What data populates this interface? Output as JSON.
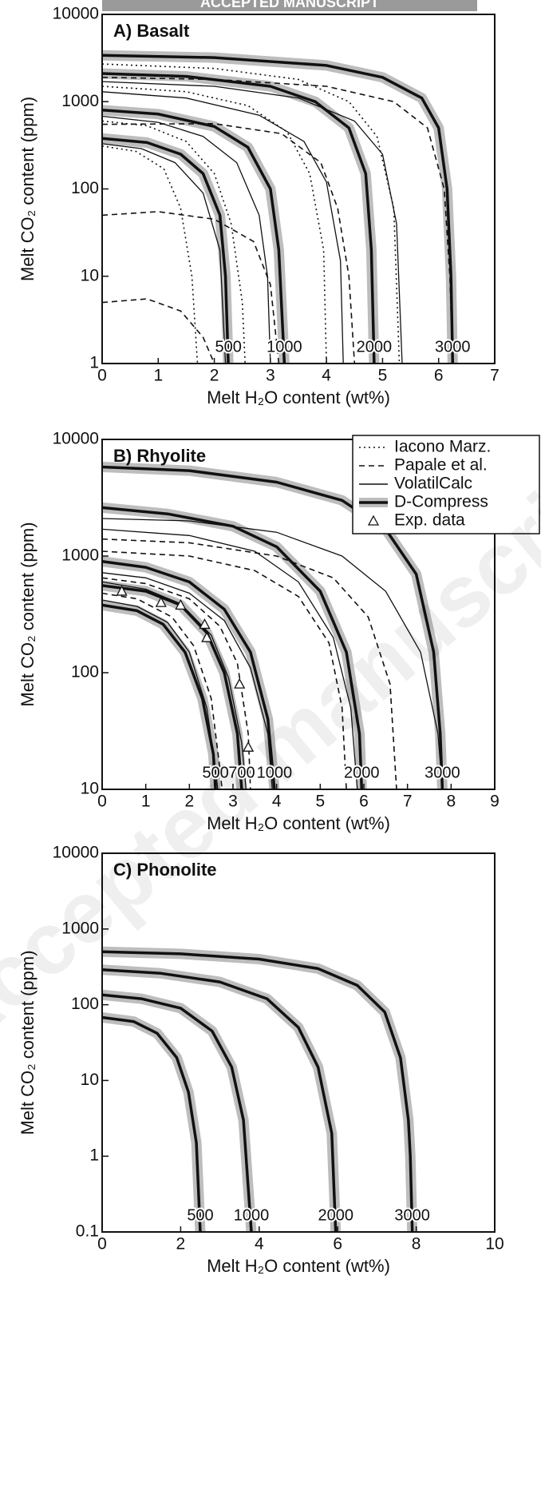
{
  "banner": "ACCEPTED MANUSCRIPT",
  "watermark": "Accepted manuscript",
  "chart_data": [
    {
      "type": "line",
      "title": "A) Basalt",
      "xlabel": "Melt H₂O content (wt%)",
      "ylabel": "Melt CO₂ content (ppm)",
      "xlim": [
        0,
        7
      ],
      "ylim": [
        1,
        10000
      ],
      "log_y": true,
      "xticks": [
        0,
        1,
        2,
        3,
        4,
        5,
        6,
        7
      ],
      "yticks": [
        1,
        10,
        100,
        1000,
        10000
      ],
      "series": [
        {
          "style": "dotted",
          "x": [
            0,
            2,
            3.5,
            4.4,
            4.9,
            5.2,
            5.3
          ],
          "values": [
            2700,
            2400,
            1800,
            1000,
            400,
            60,
            1
          ]
        },
        {
          "style": "dotted",
          "x": [
            0,
            1.5,
            2.6,
            3.3,
            3.7,
            3.95,
            4.0
          ],
          "values": [
            1500,
            1300,
            900,
            450,
            150,
            20,
            1
          ]
        },
        {
          "style": "dotted",
          "x": [
            0,
            0.8,
            1.5,
            2.0,
            2.3,
            2.5,
            2.55
          ],
          "values": [
            600,
            530,
            350,
            150,
            40,
            5,
            1
          ]
        },
        {
          "style": "dotted",
          "x": [
            0,
            0.6,
            1.1,
            1.4,
            1.6,
            1.7
          ],
          "values": [
            310,
            270,
            170,
            60,
            10,
            1
          ]
        },
        {
          "style": "dashed",
          "x": [
            0,
            2,
            4,
            5.2,
            5.8,
            6.1,
            6.2,
            6.25
          ],
          "values": [
            1900,
            1800,
            1500,
            1000,
            500,
            100,
            10,
            1
          ]
        },
        {
          "style": "dashed",
          "x": [
            0,
            2,
            3.2,
            3.9,
            4.2,
            4.4,
            4.5
          ],
          "values": [
            550,
            560,
            430,
            200,
            60,
            10,
            1
          ]
        },
        {
          "style": "dashed",
          "x": [
            0,
            1,
            2,
            2.7,
            3.0,
            3.15
          ],
          "values": [
            50,
            55,
            45,
            25,
            8,
            1
          ]
        },
        {
          "style": "dashed",
          "x": [
            0,
            0.8,
            1.4,
            1.8,
            2.0
          ],
          "values": [
            5,
            5.5,
            4,
            2,
            1
          ]
        },
        {
          "style": "solid",
          "x": [
            0,
            2,
            3.5,
            4.5,
            5.0,
            5.25,
            5.35
          ],
          "values": [
            1700,
            1500,
            1100,
            600,
            250,
            40,
            1
          ]
        },
        {
          "style": "solid",
          "x": [
            0,
            1.5,
            2.8,
            3.6,
            4.0,
            4.25,
            4.3
          ],
          "values": [
            1300,
            1100,
            700,
            350,
            120,
            15,
            1
          ]
        },
        {
          "style": "solid",
          "x": [
            0,
            1,
            1.8,
            2.4,
            2.8,
            2.95,
            3.0
          ],
          "values": [
            680,
            580,
            400,
            200,
            50,
            10,
            1
          ]
        },
        {
          "style": "solid",
          "x": [
            0,
            0.7,
            1.3,
            1.8,
            2.1,
            2.2
          ],
          "values": [
            330,
            290,
            200,
            90,
            20,
            1
          ]
        },
        {
          "style": "dcompress",
          "label": "3000",
          "x": [
            0,
            2,
            4,
            5,
            5.7,
            6.0,
            6.15,
            6.22,
            6.25
          ],
          "values": [
            3400,
            3200,
            2600,
            1900,
            1100,
            500,
            100,
            10,
            1
          ]
        },
        {
          "style": "dcompress",
          "label": "2000",
          "x": [
            0,
            1.5,
            3,
            3.8,
            4.4,
            4.7,
            4.8,
            4.85
          ],
          "values": [
            2100,
            1950,
            1500,
            1000,
            500,
            150,
            20,
            1
          ]
        },
        {
          "style": "dcompress",
          "label": "1000",
          "x": [
            0,
            1,
            2,
            2.6,
            3.0,
            3.15,
            3.25
          ],
          "values": [
            800,
            720,
            520,
            300,
            100,
            20,
            1
          ]
        },
        {
          "style": "dcompress",
          "label": "500",
          "x": [
            0,
            0.8,
            1.4,
            1.8,
            2.1,
            2.2,
            2.25
          ],
          "values": [
            380,
            340,
            250,
            150,
            50,
            10,
            1
          ]
        }
      ]
    },
    {
      "type": "line",
      "title": "B) Rhyolite",
      "xlabel": "Melt H₂O content (wt%)",
      "ylabel": "Melt CO₂ content (ppm)",
      "xlim": [
        0,
        9
      ],
      "ylim": [
        10,
        10000
      ],
      "log_y": true,
      "xticks": [
        0,
        1,
        2,
        3,
        4,
        5,
        6,
        7,
        8,
        9
      ],
      "yticks": [
        10,
        100,
        1000,
        10000
      ],
      "legend": [
        {
          "label": "Iacono Marz.",
          "style": "dotted"
        },
        {
          "label": "Papale et al.",
          "style": "dashed"
        },
        {
          "label": "VolatilCalc",
          "style": "solid"
        },
        {
          "label": "D-Compress",
          "style": "dcompress"
        },
        {
          "label": "Exp. data",
          "style": "exp"
        }
      ],
      "series": [
        {
          "style": "dashed",
          "x": [
            0,
            2,
            4,
            5.3,
            6.1,
            6.6,
            6.75
          ],
          "values": [
            1400,
            1300,
            1000,
            650,
            300,
            80,
            10
          ]
        },
        {
          "style": "dashed",
          "x": [
            0,
            2,
            3.5,
            4.5,
            5.2,
            5.5,
            5.6
          ],
          "values": [
            1100,
            1000,
            750,
            450,
            180,
            50,
            10
          ]
        },
        {
          "style": "dashed",
          "x": [
            0,
            1,
            2,
            2.7,
            3.1,
            3.35,
            3.4
          ],
          "values": [
            650,
            580,
            430,
            250,
            120,
            30,
            10
          ]
        },
        {
          "style": "dashed",
          "x": [
            0,
            0.8,
            1.6,
            2.1,
            2.5,
            2.7,
            2.75
          ],
          "values": [
            480,
            430,
            300,
            170,
            60,
            15,
            10
          ]
        },
        {
          "style": "solid",
          "x": [
            0,
            2,
            4,
            5.5,
            6.5,
            7.3,
            7.7,
            7.8
          ],
          "values": [
            2100,
            2000,
            1600,
            1000,
            500,
            150,
            30,
            10
          ]
        },
        {
          "style": "solid",
          "x": [
            0,
            2,
            3.5,
            4.5,
            5.3,
            5.7,
            5.85
          ],
          "values": [
            1700,
            1500,
            1100,
            600,
            200,
            50,
            10
          ]
        },
        {
          "style": "solid",
          "x": [
            0,
            1,
            2,
            2.8,
            3.4,
            3.8,
            3.9
          ],
          "values": [
            720,
            650,
            480,
            280,
            110,
            30,
            10
          ]
        },
        {
          "style": "solid",
          "x": [
            0,
            1,
            1.8,
            2.5,
            2.9,
            3.2,
            3.3
          ],
          "values": [
            600,
            520,
            390,
            210,
            90,
            25,
            10
          ]
        },
        {
          "style": "solid",
          "x": [
            0,
            0.8,
            1.5,
            2,
            2.4,
            2.6,
            2.65
          ],
          "values": [
            420,
            370,
            270,
            150,
            50,
            15,
            10
          ]
        },
        {
          "style": "dcompress",
          "label": "3000",
          "x": [
            0,
            2,
            4,
            5.5,
            6.5,
            7.2,
            7.6,
            7.75,
            7.8
          ],
          "values": [
            5800,
            5400,
            4300,
            3000,
            1700,
            700,
            150,
            30,
            10
          ]
        },
        {
          "style": "dcompress",
          "label": "2000",
          "x": [
            0,
            1.5,
            3,
            4,
            5,
            5.6,
            5.9,
            5.95
          ],
          "values": [
            2600,
            2300,
            1800,
            1200,
            500,
            150,
            30,
            10
          ]
        },
        {
          "style": "dcompress",
          "label": "1000",
          "x": [
            0,
            1,
            2,
            2.8,
            3.4,
            3.8,
            3.95
          ],
          "values": [
            900,
            800,
            600,
            350,
            150,
            40,
            10
          ]
        },
        {
          "style": "dcompress",
          "label": "700",
          "x": [
            0,
            1,
            1.8,
            2.4,
            2.8,
            3.1,
            3.2
          ],
          "values": [
            560,
            500,
            380,
            220,
            100,
            30,
            10
          ]
        },
        {
          "style": "dcompress",
          "label": "500",
          "x": [
            0,
            0.8,
            1.4,
            1.9,
            2.3,
            2.55,
            2.6
          ],
          "values": [
            380,
            340,
            260,
            150,
            60,
            20,
            10
          ]
        },
        {
          "style": "exp",
          "x": [
            0.45,
            1.35,
            1.8,
            2.35,
            2.4,
            3.15,
            3.35
          ],
          "values": [
            500,
            400,
            380,
            260,
            200,
            80,
            23
          ]
        }
      ]
    },
    {
      "type": "line",
      "title": "C) Phonolite",
      "xlabel": "Melt H₂O content (wt%)",
      "ylabel": "Melt CO₂ content (ppm)",
      "xlim": [
        0,
        10
      ],
      "ylim": [
        0.1,
        10000
      ],
      "log_y": true,
      "xticks": [
        0,
        2,
        4,
        6,
        8,
        10
      ],
      "yticks": [
        0.1,
        1,
        10,
        100,
        1000,
        10000
      ],
      "series": [
        {
          "style": "dcompress",
          "label": "3000",
          "x": [
            0,
            2,
            4,
            5.5,
            6.5,
            7.2,
            7.6,
            7.8,
            7.85,
            7.9
          ],
          "values": [
            500,
            470,
            400,
            300,
            180,
            80,
            20,
            3,
            1,
            0.1
          ]
        },
        {
          "style": "dcompress",
          "label": "2000",
          "x": [
            0,
            1.5,
            3,
            4.2,
            5,
            5.5,
            5.85,
            5.95
          ],
          "values": [
            290,
            260,
            200,
            120,
            50,
            15,
            2,
            0.1
          ]
        },
        {
          "style": "dcompress",
          "label": "1000",
          "x": [
            0,
            1,
            2,
            2.8,
            3.3,
            3.6,
            3.8
          ],
          "values": [
            135,
            120,
            90,
            45,
            15,
            3,
            0.1
          ]
        },
        {
          "style": "dcompress",
          "label": "500",
          "x": [
            0,
            0.8,
            1.4,
            1.9,
            2.2,
            2.4,
            2.5
          ],
          "values": [
            68,
            60,
            42,
            20,
            7,
            1.5,
            0.1
          ]
        }
      ]
    }
  ]
}
